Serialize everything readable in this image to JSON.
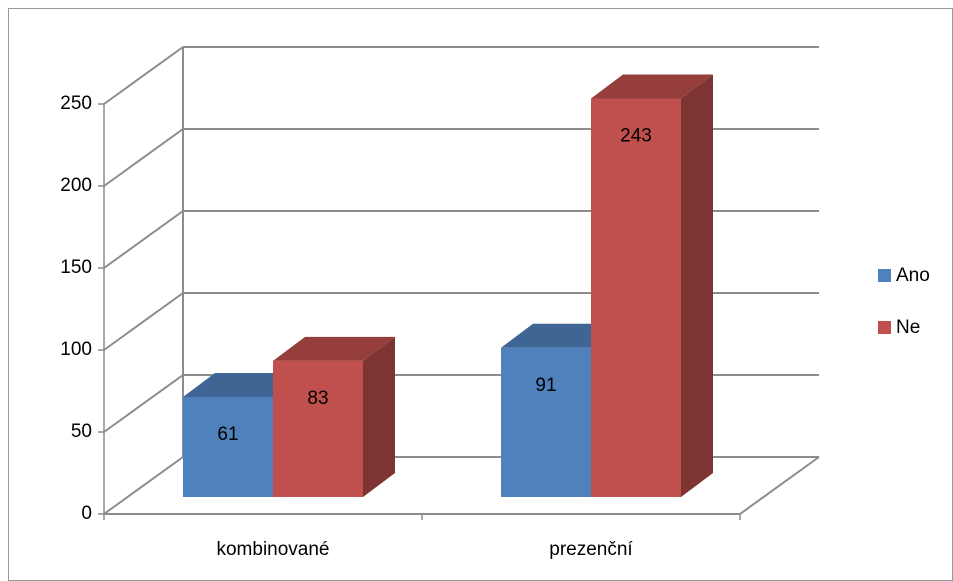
{
  "chart_data": {
    "type": "bar3d",
    "categories": [
      "kombinované",
      "prezenční"
    ],
    "series": [
      {
        "name": "Ano",
        "color": "#4f81bd",
        "values": [
          61,
          91
        ]
      },
      {
        "name": "Ne",
        "color": "#c0504d",
        "values": [
          83,
          243
        ]
      }
    ],
    "ylim": [
      0,
      250
    ],
    "yticks": [
      0,
      50,
      100,
      150,
      200,
      250
    ],
    "grid": true,
    "legend": "right"
  }
}
